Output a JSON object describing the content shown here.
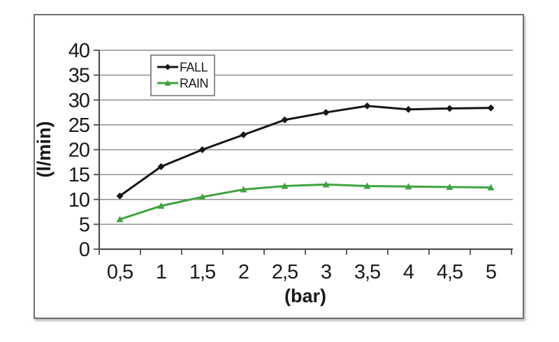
{
  "page": {
    "background": "#ffffff"
  },
  "frame": {
    "border_color": "#6f6f6f",
    "background": "#ffffff"
  },
  "chart_data": {
    "type": "line",
    "title": "",
    "xlabel": "(bar)",
    "ylabel": "(l/min)",
    "categories": [
      "0,5",
      "1",
      "1,5",
      "2",
      "2,5",
      "3",
      "3,5",
      "4",
      "4,5",
      "5"
    ],
    "x_values": [
      0.5,
      1,
      1.5,
      2,
      2.5,
      3,
      3.5,
      4,
      4.5,
      5
    ],
    "ylim": [
      0,
      40
    ],
    "y_ticks": [
      0,
      5,
      10,
      15,
      20,
      25,
      30,
      35,
      40
    ],
    "grid": "horizontal-only",
    "legend_position": "inside-top-left",
    "series": [
      {
        "name": "FALL",
        "color": "#161616",
        "marker": "diamond",
        "values": [
          10.7,
          16.6,
          20,
          23,
          26,
          27.5,
          28.8,
          28.1,
          28.3,
          28.4
        ]
      },
      {
        "name": "RAIN",
        "color": "#3ea33e",
        "marker": "triangle",
        "values": [
          6,
          8.7,
          10.5,
          12,
          12.7,
          13,
          12.7,
          12.6,
          12.5,
          12.4
        ]
      }
    ],
    "axis_color": "#4d4d4d",
    "grid_color": "#8f8f8f",
    "text_color": "#1a1a1a"
  }
}
